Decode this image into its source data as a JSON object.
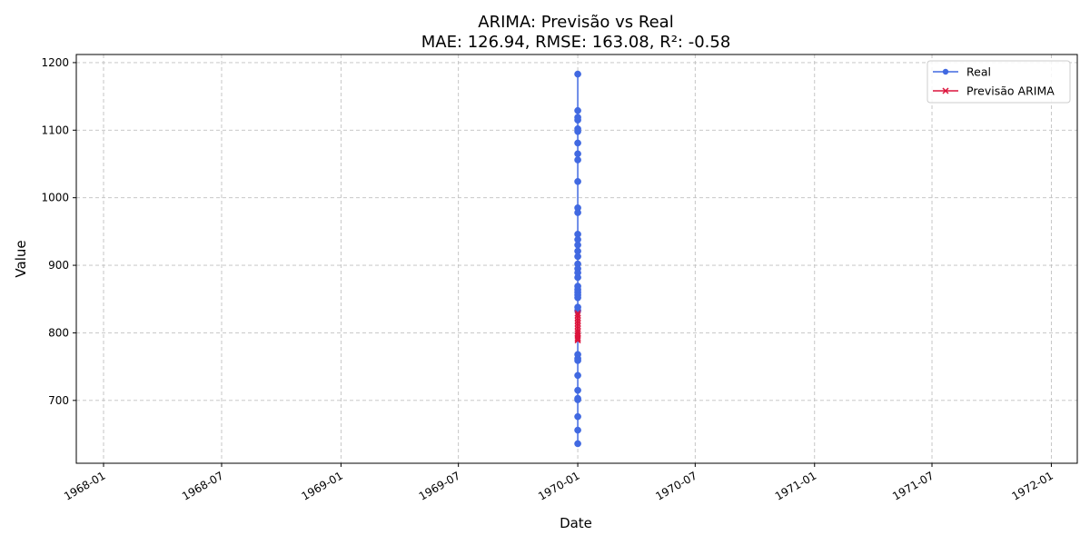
{
  "chart_data": {
    "type": "line",
    "title": "ARIMA: Previsão vs Real",
    "subtitle": "MAE: 126.94, RMSE: 163.08, R²: -0.58",
    "xlabel": "Date",
    "ylabel": "Value",
    "x_ticks": [
      "1968-01",
      "1968-07",
      "1969-01",
      "1969-07",
      "1970-01",
      "1970-07",
      "1971-01",
      "1971-07",
      "1972-01"
    ],
    "y_ticks": [
      700,
      800,
      900,
      1000,
      1100,
      1200
    ],
    "xlim": [
      "1967-11-20",
      "1972-02-10"
    ],
    "ylim": [
      607,
      1212
    ],
    "grid": true,
    "legend_position": "top-right",
    "series": [
      {
        "name": "Real",
        "color": "#4169e1",
        "marker": "circle",
        "x": "1970-01-01",
        "values": [
          1183,
          1129,
          1119,
          1115,
          1102,
          1098,
          1081,
          1065,
          1056,
          1024,
          985,
          978,
          946,
          938,
          930,
          921,
          913,
          902,
          895,
          889,
          882,
          869,
          864,
          860,
          856,
          852,
          838,
          833,
          768,
          762,
          759,
          737,
          715,
          703,
          701,
          676,
          656,
          636
        ]
      },
      {
        "name": "Previsão ARIMA",
        "color": "#dc143c",
        "marker": "x",
        "x": "1970-01-01",
        "values": [
          829,
          826,
          822,
          818,
          814,
          810,
          806,
          802,
          799,
          796,
          793,
          791,
          789
        ]
      }
    ]
  }
}
